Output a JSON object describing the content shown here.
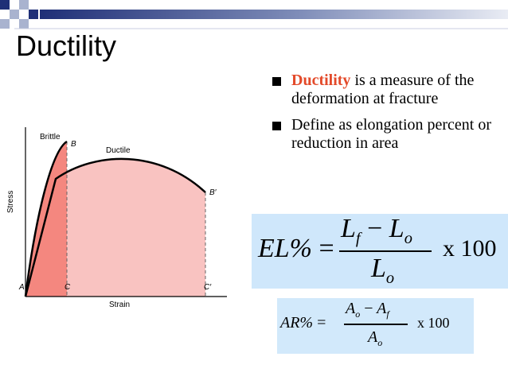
{
  "slide": {
    "title": "Ductility",
    "accent_colors": [
      "#a9b3cf",
      "#1f2f77",
      "#e34a2a"
    ]
  },
  "bullets": [
    {
      "highlight": "Ductility",
      "text": " is a measure of the deformation at fracture"
    },
    {
      "highlight": "",
      "text": "Define as elongation percent or reduction in area"
    }
  ],
  "formulas": {
    "el": {
      "lhs": "EL%",
      "eq": "=",
      "num_a": "L",
      "num_a_sub": "f",
      "minus": "−",
      "num_b": "L",
      "num_b_sub": "o",
      "den": "L",
      "den_sub": "o",
      "factor": "x 100"
    },
    "ar": {
      "lhs": "AR%",
      "eq": "=",
      "num_a": "A",
      "num_a_sub": "o",
      "minus": "−",
      "num_b": "A",
      "num_b_sub": "f",
      "den": "A",
      "den_sub": "o",
      "factor": "x 100"
    }
  },
  "chart": {
    "xlabel": "Strain",
    "ylabel": "Stress",
    "curve_labels": {
      "brittle": "Brittle",
      "ductile": "Ductile"
    },
    "point_labels": {
      "A": "A",
      "B": "B",
      "B_prime": "B′",
      "C": "C",
      "C_prime": "C′"
    },
    "colors": {
      "ductile_fill": "#f9c3c1",
      "brittle_fill": "#f4877f"
    }
  }
}
